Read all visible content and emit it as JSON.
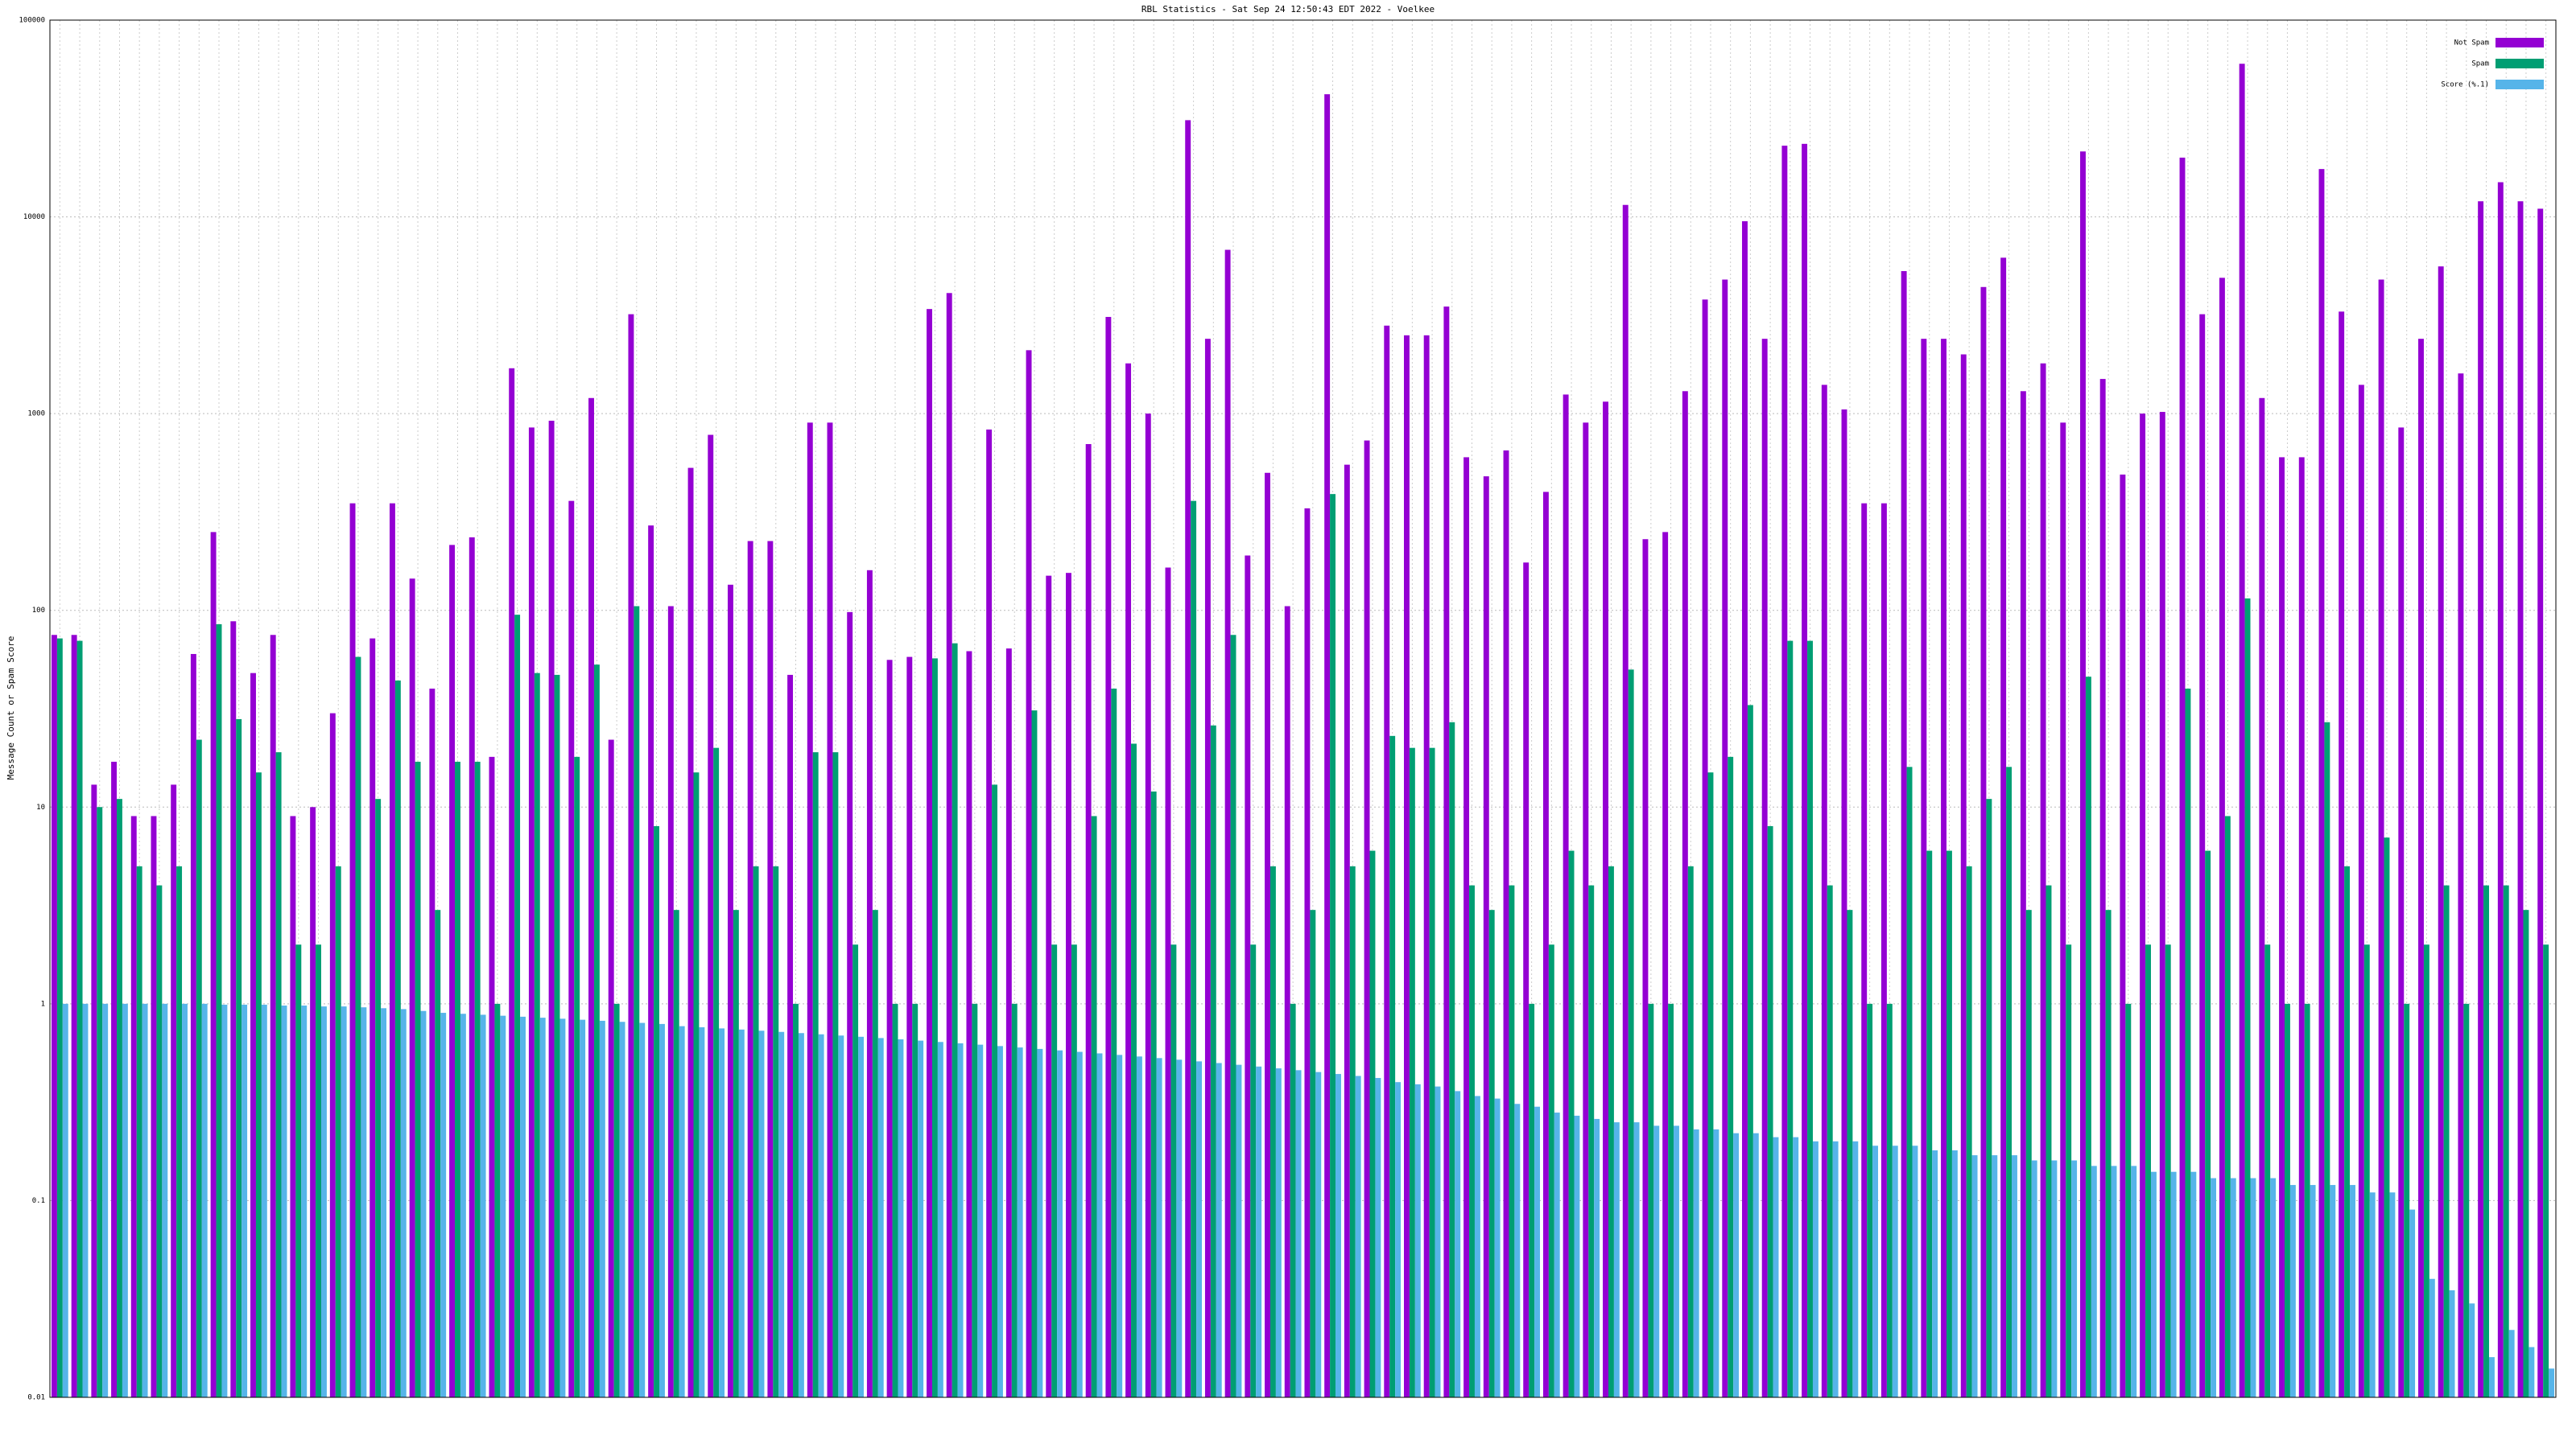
{
  "chart_data": {
    "type": "bar",
    "title": "RBL Statistics - Sat Sep 24 12:50:43 EDT 2022 - Voelkee",
    "y_label": "Message Count or Spam Score",
    "log_scale": true,
    "grid": true,
    "legend": "upper right",
    "categories": [
      null,
      null,
      null,
      null,
      null,
      null,
      null,
      null,
      null,
      null,
      null,
      null,
      null,
      null,
      null,
      null,
      null,
      null,
      null,
      null,
      null,
      null,
      null,
      null,
      null,
      null,
      null,
      null,
      null,
      null,
      null,
      null,
      null,
      null,
      null,
      null,
      null,
      null,
      null,
      null,
      null,
      null,
      null,
      null,
      null,
      null,
      null,
      null,
      null,
      null,
      null,
      null,
      null,
      null,
      null,
      null,
      null,
      null,
      null,
      null,
      null,
      null,
      null,
      null,
      null,
      null,
      null,
      null,
      null,
      null,
      null,
      null,
      null,
      null,
      null,
      null,
      null,
      null,
      null,
      null,
      null,
      null,
      null,
      null,
      null,
      null,
      null,
      null,
      null,
      null,
      null,
      null,
      null,
      null,
      null,
      null,
      null,
      null,
      null,
      null,
      null,
      null,
      null,
      null,
      null,
      null,
      null,
      null,
      null,
      null,
      null,
      null,
      null,
      null,
      null,
      null,
      null,
      null,
      null,
      null,
      null,
      null,
      null,
      null,
      null,
      null
    ],
    "series": [
      {
        "name": "Not Spam",
        "color": "#9400d3",
        "values": [
          75,
          75,
          13,
          17,
          9,
          9,
          13,
          60,
          250,
          88,
          48,
          75,
          9,
          10,
          30,
          350,
          72,
          350,
          145,
          40,
          215,
          235,
          18,
          1700,
          850,
          920,
          360,
          1200,
          22,
          3200,
          270,
          105,
          530,
          780,
          135,
          225,
          225,
          47,
          900,
          900,
          98,
          160,
          56,
          58,
          3400,
          4100,
          62,
          830,
          64,
          2100,
          150,
          155,
          700,
          3100,
          1800,
          1000,
          165,
          31000,
          2400,
          6800,
          190,
          500,
          105,
          330,
          42000,
          550,
          730,
          2800,
          2500,
          2500,
          3500,
          600,
          480,
          650,
          175,
          400,
          1250,
          900,
          1150,
          11500,
          230,
          250,
          1300,
          3800,
          4800,
          9500,
          2400,
          23000,
          23500,
          1400,
          1050,
          350,
          350,
          5300,
          2400,
          2400,
          2000,
          4400,
          6200,
          1300,
          1800,
          900,
          21500,
          1500,
          490,
          1000,
          1020,
          20000,
          3200,
          4900,
          60000,
          1200,
          600,
          600,
          17500,
          3300,
          1400,
          4800,
          850,
          2400,
          5600,
          1600,
          12000,
          15000,
          12000,
          11000
        ]
      },
      {
        "name": "Spam",
        "color": "#009e73",
        "values": [
          72,
          70,
          10,
          11,
          5,
          4,
          5,
          22,
          85,
          28,
          15,
          19,
          2,
          2,
          5,
          58,
          11,
          44,
          17,
          3,
          17,
          17,
          1,
          95,
          48,
          47,
          18,
          53,
          1,
          105,
          8,
          3,
          15,
          20,
          3,
          5,
          5,
          1,
          19,
          19,
          2,
          3,
          1,
          1,
          57,
          68,
          1,
          13,
          1,
          31,
          2,
          2,
          9,
          40,
          21,
          12,
          2,
          360,
          26,
          75,
          2,
          5,
          1,
          3,
          390,
          5,
          6,
          23,
          20,
          20,
          27,
          4,
          3,
          4,
          1,
          2,
          6,
          4,
          5,
          50,
          1,
          1,
          5,
          15,
          18,
          33,
          8,
          70,
          70,
          4,
          3,
          1,
          1,
          16,
          6,
          6,
          5,
          11,
          16,
          3,
          4,
          2,
          46,
          3,
          1,
          2,
          2,
          40,
          6,
          9,
          115,
          2,
          1,
          1,
          27,
          5,
          2,
          7,
          1,
          2,
          4,
          1,
          4,
          4,
          3,
          2
        ]
      },
      {
        "name": "Score (%.1)",
        "color": "#56b4e9",
        "values": [
          1,
          1,
          1,
          1,
          1,
          1,
          1,
          1,
          0.99,
          0.99,
          0.99,
          0.98,
          0.98,
          0.97,
          0.97,
          0.96,
          0.95,
          0.94,
          0.92,
          0.9,
          0.89,
          0.88,
          0.87,
          0.86,
          0.85,
          0.84,
          0.83,
          0.82,
          0.81,
          0.8,
          0.79,
          0.77,
          0.76,
          0.75,
          0.74,
          0.73,
          0.72,
          0.71,
          0.7,
          0.69,
          0.68,
          0.67,
          0.66,
          0.65,
          0.64,
          0.63,
          0.62,
          0.61,
          0.6,
          0.59,
          0.58,
          0.57,
          0.56,
          0.55,
          0.54,
          0.53,
          0.52,
          0.51,
          0.5,
          0.49,
          0.48,
          0.47,
          0.46,
          0.45,
          0.44,
          0.43,
          0.42,
          0.4,
          0.39,
          0.38,
          0.36,
          0.34,
          0.33,
          0.31,
          0.3,
          0.28,
          0.27,
          0.26,
          0.25,
          0.25,
          0.24,
          0.24,
          0.23,
          0.23,
          0.22,
          0.22,
          0.21,
          0.21,
          0.2,
          0.2,
          0.2,
          0.19,
          0.19,
          0.19,
          0.18,
          0.18,
          0.17,
          0.17,
          0.17,
          0.16,
          0.16,
          0.16,
          0.15,
          0.15,
          0.15,
          0.14,
          0.14,
          0.14,
          0.13,
          0.13,
          0.13,
          0.13,
          0.12,
          0.12,
          0.12,
          0.12,
          0.11,
          0.11,
          0.09,
          0.04,
          0.035,
          0.03,
          0.016,
          0.022,
          0.018,
          0.014
        ]
      }
    ],
    "ylim": [
      0.01,
      100000
    ],
    "yticks": [
      0.01,
      0.1,
      1,
      10,
      100,
      1000,
      10000,
      100000
    ]
  }
}
